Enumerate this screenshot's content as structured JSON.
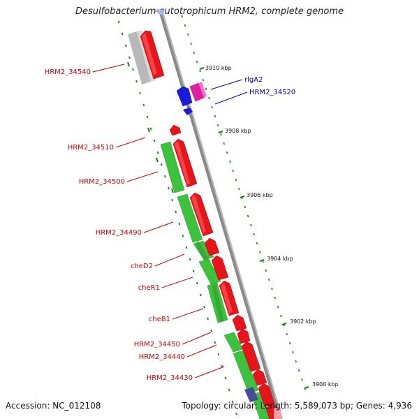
{
  "title": "Desulfobacterium autotrophicum HRM2, complete genome",
  "footer": {
    "accession": "Accession: NC_012108",
    "summary": "Topology: circular; Length: 5,589,073 bp; Genes: 4,936"
  },
  "colors": {
    "forward_gene": "#e8141b",
    "reverse_gene": "#1a1adf",
    "pseudo_gene": "#e020a0",
    "grey_gene": "#b8b8b8",
    "green_track": "#3cc23c",
    "backbone": "#8a8a8a",
    "label_red": "#cc0000",
    "label_blue": "#0000aa",
    "tick": "#1f7a1f"
  },
  "scale_labels": [
    "3910 kbp",
    "3908 kbp",
    "3906 kbp",
    "3904 kbp",
    "3902 kbp",
    "3900 kbp"
  ],
  "gene_labels_left": [
    "HRM2_34540",
    "HRM2_34510",
    "HRM2_34500",
    "HRM2_34490",
    "cheD2",
    "cheR1",
    "cheB1",
    "HRM2_34450",
    "HRM2_34440",
    "HRM2_34430"
  ],
  "gene_labels_right": [
    "rlgA2",
    "HRM2_34520"
  ]
}
